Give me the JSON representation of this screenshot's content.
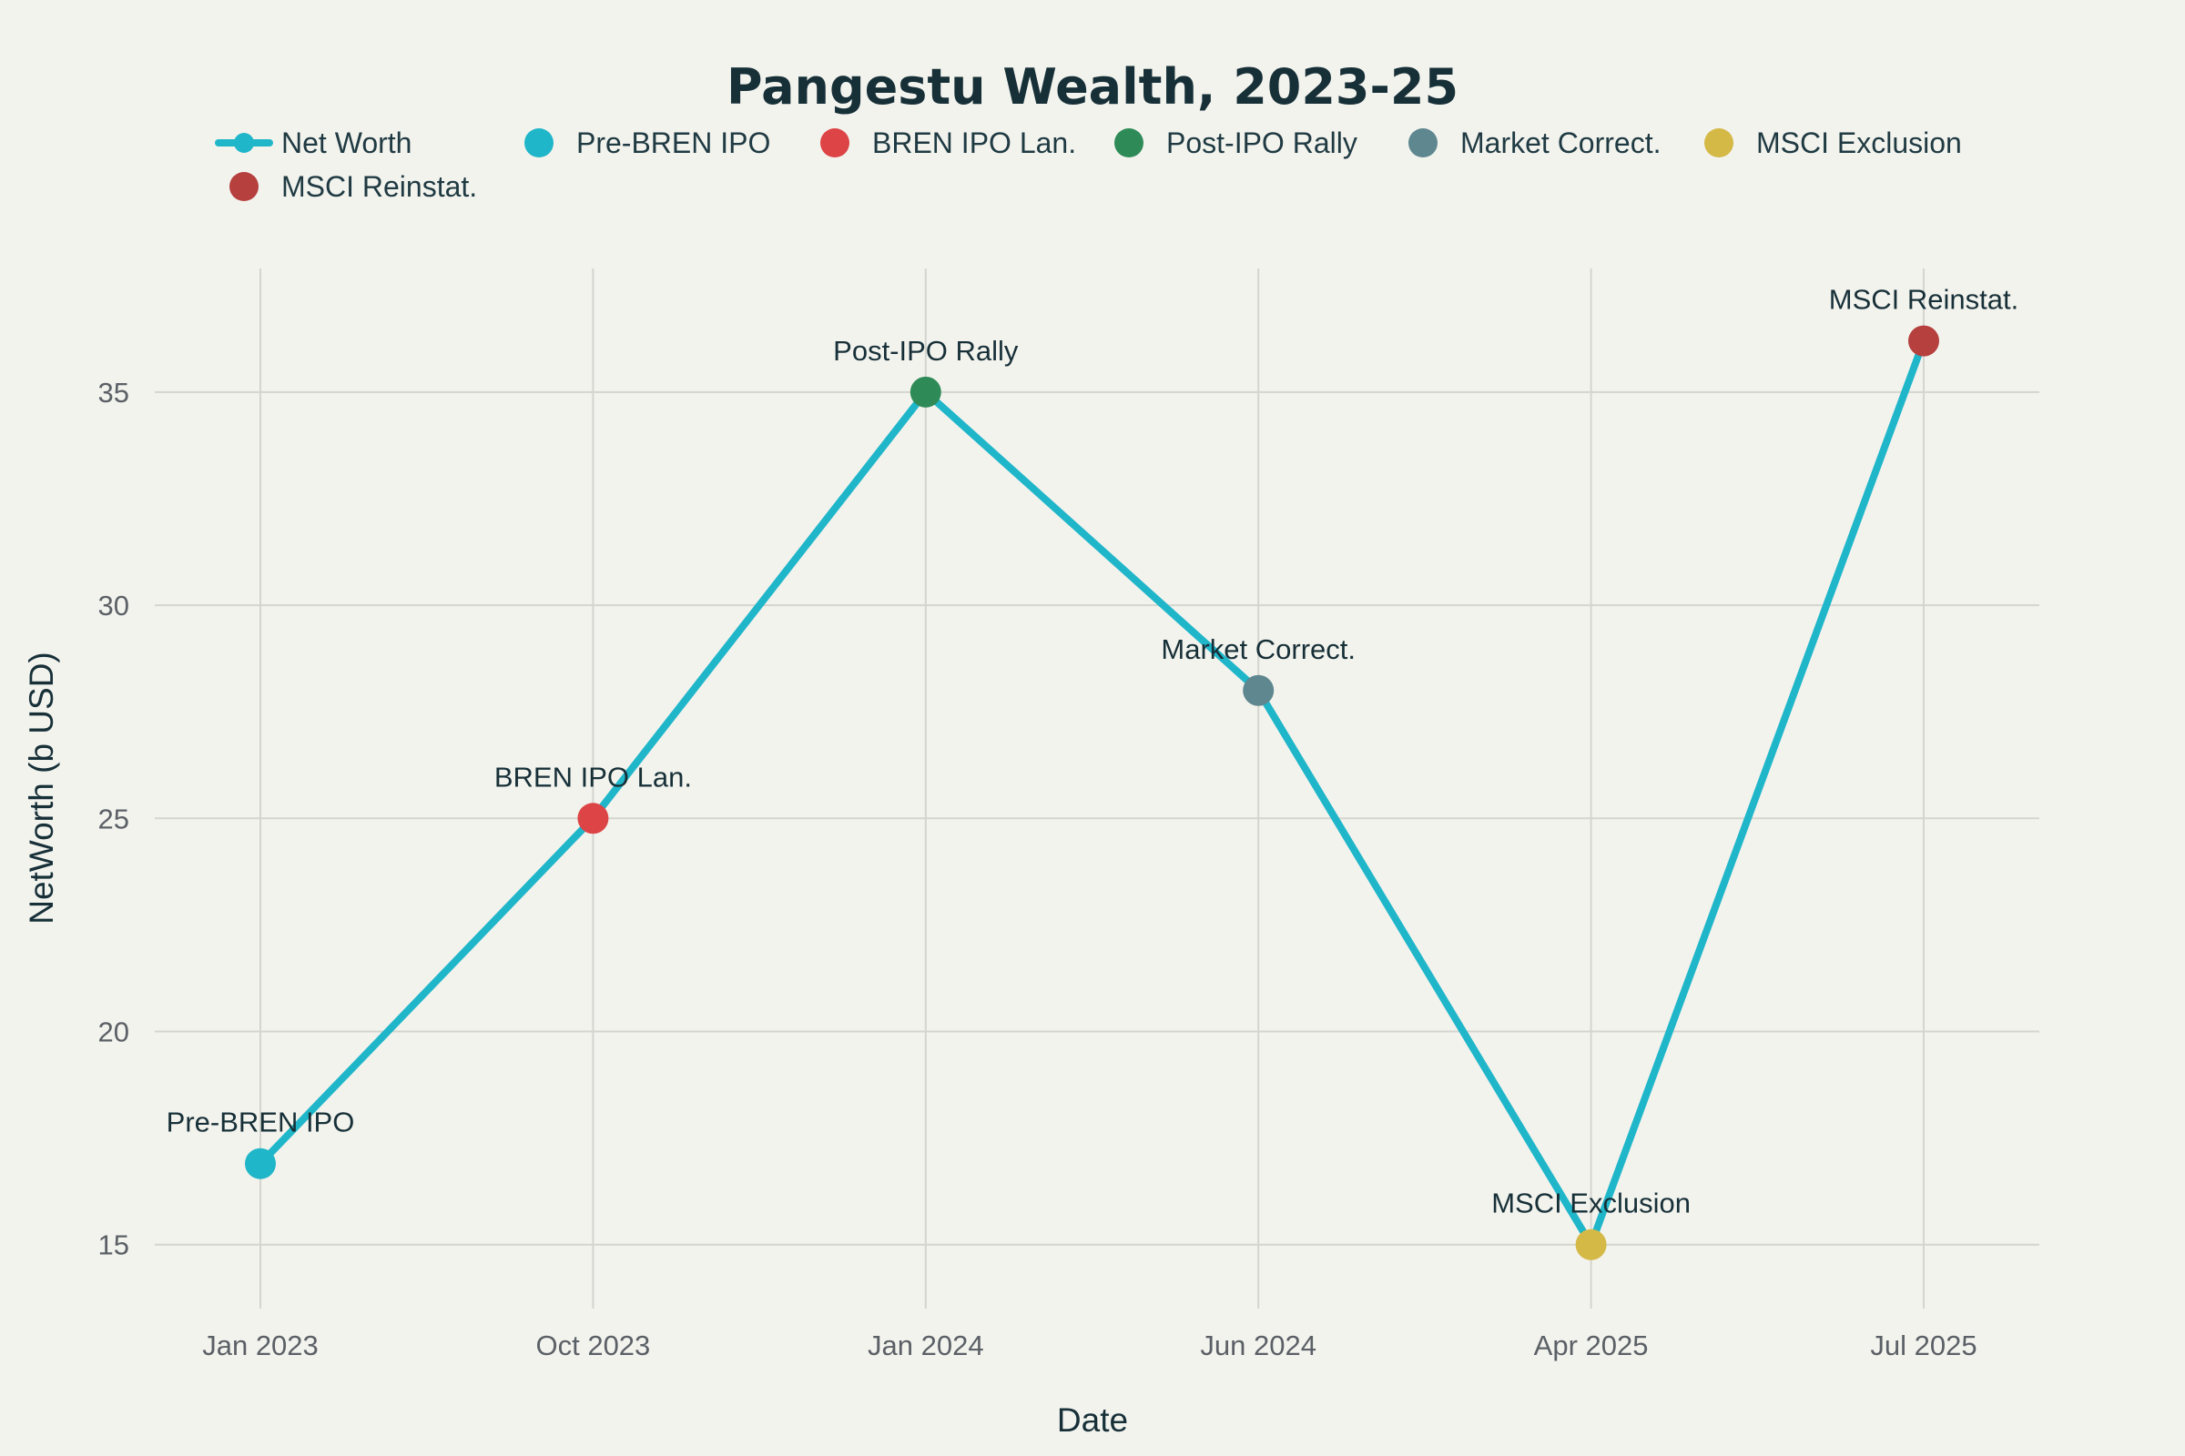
{
  "chart_data": {
    "type": "line",
    "title": "Pangestu Wealth, 2023-25",
    "xlabel": "Date",
    "ylabel": "NetWorth (b USD)",
    "categories": [
      "Jan 2023",
      "Oct 2023",
      "Jan 2024",
      "Jun 2024",
      "Apr 2025",
      "Jul 2025"
    ],
    "ylim": [
      13.5,
      37.9
    ],
    "yticks": [
      15,
      20,
      25,
      30,
      35
    ],
    "grid": true,
    "legend_position": "top",
    "line_series": {
      "name": "Net Worth",
      "color": "#20b6c9",
      "values": [
        16.9,
        25,
        35,
        28,
        15,
        36.2
      ]
    },
    "events": [
      {
        "name": "Pre-BREN IPO",
        "label": "Pre-BREN IPO",
        "x": "Jan 2023",
        "y": 16.9,
        "color": "#20b6c9"
      },
      {
        "name": "BREN IPO Lan.",
        "label": "BREN IPO Lan.",
        "x": "Oct 2023",
        "y": 25,
        "color": "#dc4446"
      },
      {
        "name": "Post-IPO Rally",
        "label": "Post-IPO Rally",
        "x": "Jan 2024",
        "y": 35,
        "color": "#2e8b57"
      },
      {
        "name": "Market Correct.",
        "label": "Market Correct.",
        "x": "Jun 2024",
        "y": 28,
        "color": "#5f8790"
      },
      {
        "name": "MSCI Exclusion",
        "label": "MSCI Exclusion",
        "x": "Apr 2025",
        "y": 15,
        "color": "#d4b947"
      },
      {
        "name": "MSCI Reinstat.",
        "label": "MSCI Reinstat.",
        "x": "Jul 2025",
        "y": 36.2,
        "color": "#b5403d"
      }
    ]
  }
}
